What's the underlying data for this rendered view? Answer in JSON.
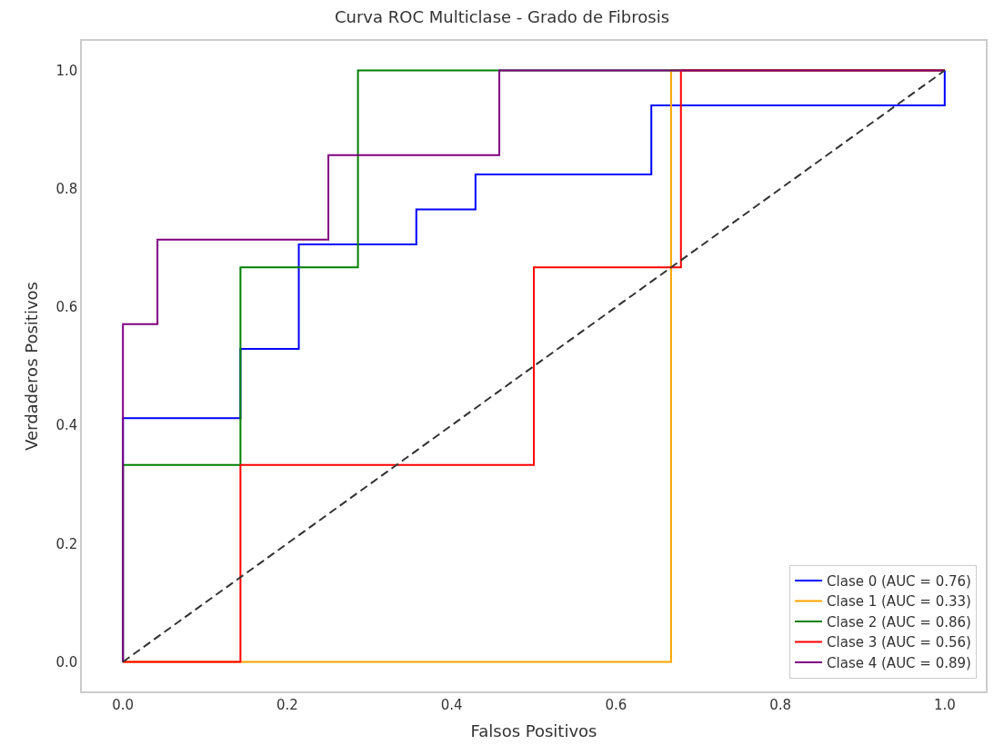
{
  "chart_data": {
    "type": "line",
    "title": "Curva ROC Multiclase - Grado de Fibrosis",
    "xlabel": "Falsos Positivos",
    "ylabel": "Verdaderos Positivos",
    "series": [
      {
        "name": "Clase 0 (AUC = 0.76)",
        "color": "#0000ff",
        "x": [
          0,
          0,
          0.143,
          0.143,
          0.214,
          0.214,
          0.357,
          0.357,
          0.429,
          0.429,
          0.643,
          0.643,
          1,
          1
        ],
        "values": [
          0,
          0.412,
          0.412,
          0.529,
          0.529,
          0.706,
          0.706,
          0.765,
          0.765,
          0.824,
          0.824,
          0.941,
          0.941,
          1
        ]
      },
      {
        "name": "Clase 1 (AUC = 0.33)",
        "color": "#ffa500",
        "x": [
          0,
          0.667,
          0.667,
          1
        ],
        "values": [
          0,
          0,
          1,
          1
        ]
      },
      {
        "name": "Clase 2 (AUC = 0.86)",
        "color": "#008000",
        "x": [
          0,
          0,
          0.143,
          0.143,
          0.286,
          0.286,
          1
        ],
        "values": [
          0,
          0.333,
          0.333,
          0.667,
          0.667,
          1,
          1
        ]
      },
      {
        "name": "Clase 3 (AUC = 0.56)",
        "color": "#ff0000",
        "x": [
          0,
          0.143,
          0.143,
          0.5,
          0.5,
          0.679,
          0.679,
          1
        ],
        "values": [
          0,
          0,
          0.333,
          0.333,
          0.667,
          0.667,
          1,
          1
        ]
      },
      {
        "name": "Clase 4 (AUC = 0.89)",
        "color": "#800080",
        "x": [
          0,
          0,
          0.042,
          0.042,
          0.25,
          0.25,
          0.458,
          0.458,
          1
        ],
        "values": [
          0,
          0.571,
          0.571,
          0.714,
          0.714,
          0.857,
          0.857,
          1,
          1
        ]
      },
      {
        "color": "#333333",
        "line_style": "dashed",
        "x": [
          0,
          1
        ],
        "values": [
          0,
          1
        ]
      }
    ],
    "xlim": [
      -0.05,
      1.05
    ],
    "ylim": [
      -0.05,
      1.05
    ],
    "xticks": [
      {
        "value": 0,
        "label": "0.0"
      },
      {
        "value": 0.2,
        "label": "0.2"
      },
      {
        "value": 0.4,
        "label": "0.4"
      },
      {
        "value": 0.6,
        "label": "0.6"
      },
      {
        "value": 0.8,
        "label": "0.8"
      },
      {
        "value": 1,
        "label": "1.0"
      }
    ],
    "yticks": [
      {
        "value": 0,
        "label": "0.0"
      },
      {
        "value": 0.2,
        "label": "0.2"
      },
      {
        "value": 0.4,
        "label": "0.4"
      },
      {
        "value": 0.6,
        "label": "0.6"
      },
      {
        "value": 0.8,
        "label": "0.8"
      },
      {
        "value": 1,
        "label": "1.0"
      }
    ],
    "grid": false,
    "legend": "bottom right",
    "line_style": "solid",
    "marker": "none"
  }
}
